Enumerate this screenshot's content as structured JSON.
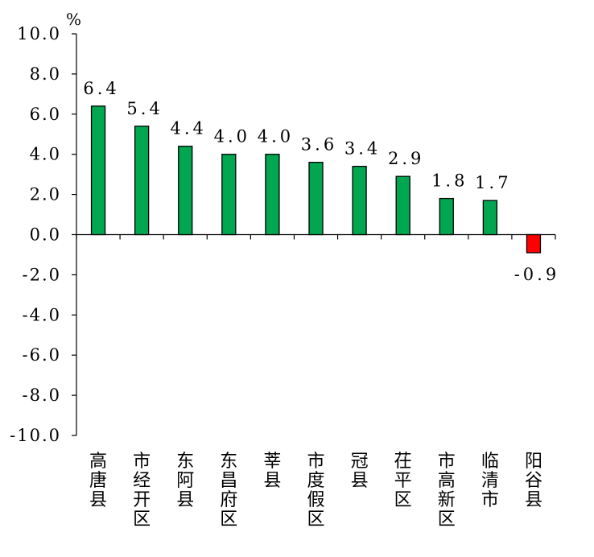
{
  "chart_data": {
    "type": "bar",
    "unit": "%",
    "categories": [
      "高唐县",
      "市经开区",
      "东阿县",
      "东昌府区",
      "莘县",
      "市度假区",
      "冠县",
      "茌平区",
      "市高新区",
      "临清市",
      "阳谷县"
    ],
    "values": [
      6.4,
      5.4,
      4.4,
      4.0,
      4.0,
      3.6,
      3.4,
      2.9,
      1.8,
      1.7,
      -0.9
    ],
    "value_labels": [
      "6.4",
      "5.4",
      "4.4",
      "4.0",
      "4.0",
      "3.6",
      "3.4",
      "2.9",
      "1.8",
      "1.7",
      "-0.9"
    ],
    "ylim": [
      -10,
      10
    ],
    "yticks": [
      "10.0",
      "8.0",
      "6.0",
      "4.0",
      "2.0",
      "0.0",
      "-2.0",
      "-4.0",
      "-6.0",
      "-8.0",
      "-10.0"
    ],
    "grid": false,
    "legend": "none",
    "colors": {
      "positive": "#00a650",
      "negative": "#ff0000",
      "stroke": "#000000"
    }
  }
}
